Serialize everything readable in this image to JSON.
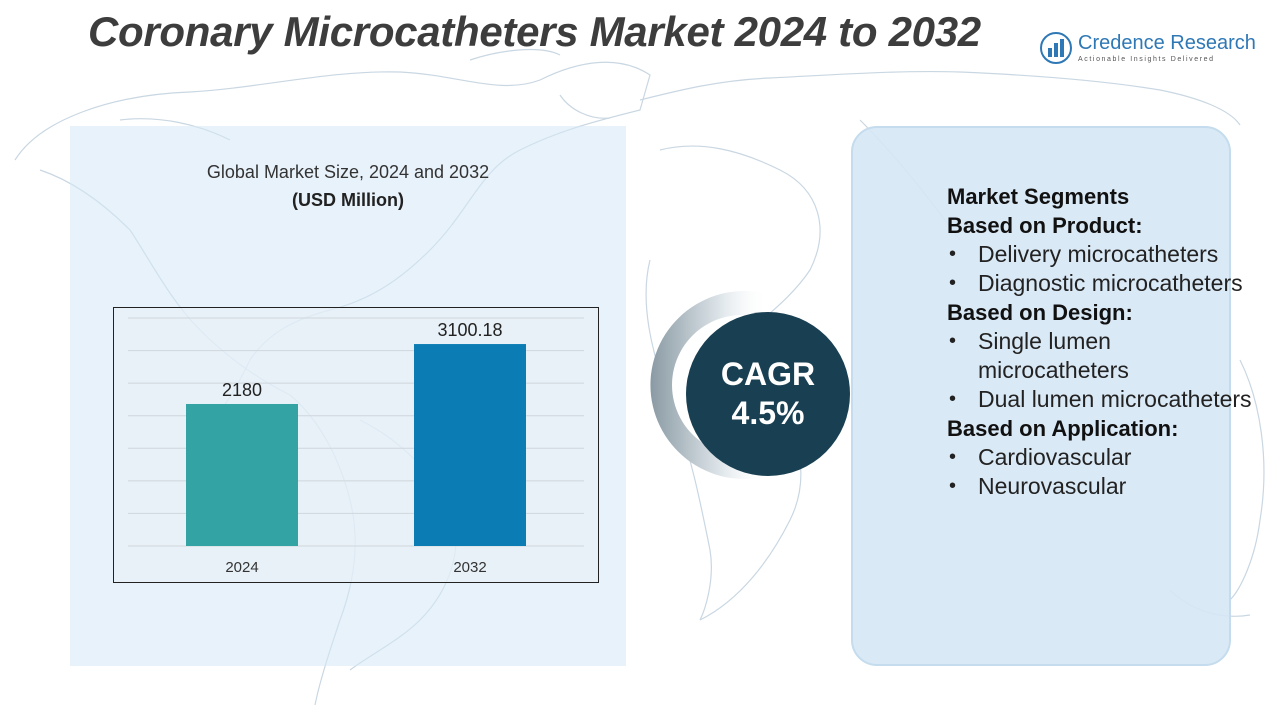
{
  "header": {
    "title": "Coronary Microcatheters Market 2024 to 2032"
  },
  "logo": {
    "name": "Credence Research",
    "tagline": "Actionable Insights Delivered",
    "icon": "bar-chart-logo-icon"
  },
  "colors": {
    "bar_2024": "#33a3a4",
    "bar_2032": "#0b7db4",
    "cagr_circle": "#183f52",
    "panel": "#d6e7f5",
    "title_text": "#3d3d3d"
  },
  "chart_data": {
    "type": "bar",
    "title": "Global Market Size, 2024 and 2032",
    "unit": "(USD Million)",
    "categories": [
      "2024",
      "2032"
    ],
    "values": [
      2180,
      3100.18
    ],
    "data_labels": [
      "2180",
      "3100.18"
    ],
    "ylim": [
      0,
      3500
    ],
    "grid": true,
    "legend": "none"
  },
  "cagr": {
    "label": "CAGR",
    "value": "4.5%"
  },
  "segments": {
    "heading": "Market Segments",
    "groups": [
      {
        "heading": "Based on Product:",
        "items": [
          "Delivery microcatheters",
          "Diagnostic microcatheters"
        ]
      },
      {
        "heading": "Based on Design:",
        "items": [
          "Single lumen microcatheters",
          "Dual lumen microcatheters"
        ]
      },
      {
        "heading": "Based on Application:",
        "items": [
          "Cardiovascular",
          "Neurovascular"
        ]
      }
    ]
  }
}
